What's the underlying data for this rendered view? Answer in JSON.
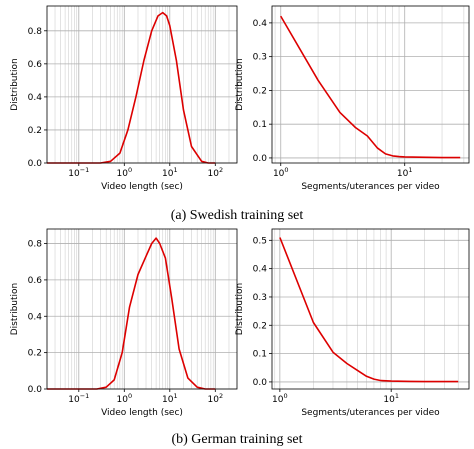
{
  "chart_data": [
    {
      "type": "line",
      "panel": "Swedish training set, video length",
      "xlabel": "Video length (sec)",
      "ylabel": "Distribution",
      "xscale": "log",
      "xlim": [
        0.02,
        300
      ],
      "ylim": [
        0,
        0.95
      ],
      "yticks": [
        "0.0",
        "0.2",
        "0.4",
        "0.6",
        "0.8"
      ],
      "xticks": [
        "10^-1",
        "10^0",
        "10^1",
        "10^2"
      ],
      "grid": true,
      "color": "#dd0000",
      "x": [
        0.02,
        0.3,
        0.5,
        0.8,
        1.2,
        1.8,
        2.7,
        4,
        5.5,
        7,
        8.5,
        10,
        14,
        20,
        30,
        50,
        70,
        100
      ],
      "y": [
        0.0,
        0.0,
        0.01,
        0.06,
        0.2,
        0.4,
        0.62,
        0.8,
        0.89,
        0.91,
        0.89,
        0.83,
        0.62,
        0.32,
        0.1,
        0.01,
        0.0,
        0.0
      ]
    },
    {
      "type": "line",
      "panel": "Swedish training set, segments per video",
      "xlabel": "Segments/uterances per video",
      "ylabel": "Distribution",
      "xscale": "log",
      "xlim": [
        0.85,
        33
      ],
      "ylim": [
        -0.015,
        0.45
      ],
      "yticks": [
        "0.0",
        "0.1",
        "0.2",
        "0.3",
        "0.4"
      ],
      "xticks": [
        "10^0",
        "10^1"
      ],
      "grid": true,
      "color": "#dd0000",
      "x": [
        1,
        2,
        3,
        4,
        5,
        6,
        7,
        8,
        9,
        10,
        15,
        20,
        28
      ],
      "y": [
        0.42,
        0.23,
        0.135,
        0.09,
        0.065,
        0.03,
        0.012,
        0.006,
        0.004,
        0.003,
        0.002,
        0.001,
        0.001
      ]
    },
    {
      "type": "line",
      "panel": "German training set, video length",
      "xlabel": "Video length (sec)",
      "ylabel": "Distribution",
      "xscale": "log",
      "xlim": [
        0.02,
        300
      ],
      "ylim": [
        0,
        0.88
      ],
      "yticks": [
        "0.0",
        "0.2",
        "0.4",
        "0.6",
        "0.8"
      ],
      "xticks": [
        "10^-1",
        "10^0",
        "10^1",
        "10^2"
      ],
      "grid": true,
      "color": "#dd0000",
      "x": [
        0.02,
        0.25,
        0.4,
        0.6,
        0.9,
        1.3,
        2,
        3,
        4,
        5,
        6,
        8,
        11,
        16,
        25,
        40,
        60,
        100
      ],
      "y": [
        0.0,
        0.0,
        0.01,
        0.05,
        0.2,
        0.45,
        0.63,
        0.73,
        0.8,
        0.83,
        0.8,
        0.72,
        0.5,
        0.22,
        0.06,
        0.01,
        0.0,
        0.0
      ]
    },
    {
      "type": "line",
      "panel": "German training set, segments per video",
      "xlabel": "Segments/uterances per video",
      "ylabel": "Distribution",
      "xscale": "log",
      "xlim": [
        0.85,
        50
      ],
      "ylim": [
        -0.025,
        0.54
      ],
      "yticks": [
        "0.0",
        "0.1",
        "0.2",
        "0.3",
        "0.4",
        "0.5"
      ],
      "xticks": [
        "10^0",
        "10^1"
      ],
      "grid": true,
      "color": "#dd0000",
      "x": [
        1,
        2,
        3,
        4,
        5,
        6,
        7,
        8,
        10,
        15,
        20,
        30,
        40
      ],
      "y": [
        0.51,
        0.21,
        0.105,
        0.065,
        0.04,
        0.02,
        0.01,
        0.005,
        0.003,
        0.002,
        0.001,
        0.001,
        0.001
      ]
    }
  ],
  "captions": {
    "a": "(a) Swedish training set",
    "b": "(b) German training set"
  }
}
